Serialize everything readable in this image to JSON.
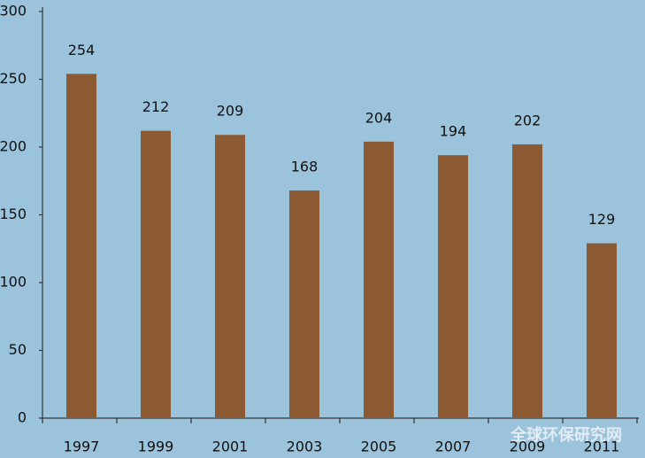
{
  "chart_data": {
    "type": "bar",
    "categories": [
      "1997",
      "1999",
      "2001",
      "2003",
      "2005",
      "2007",
      "2009",
      "2011"
    ],
    "values": [
      254,
      212,
      209,
      168,
      204,
      194,
      202,
      129
    ],
    "color": "#8b5a32",
    "ylim": [
      0,
      300
    ],
    "yticks": [
      0,
      50,
      100,
      150,
      200,
      250,
      300
    ],
    "grid": false,
    "watermark": "全球环保研究网"
  }
}
